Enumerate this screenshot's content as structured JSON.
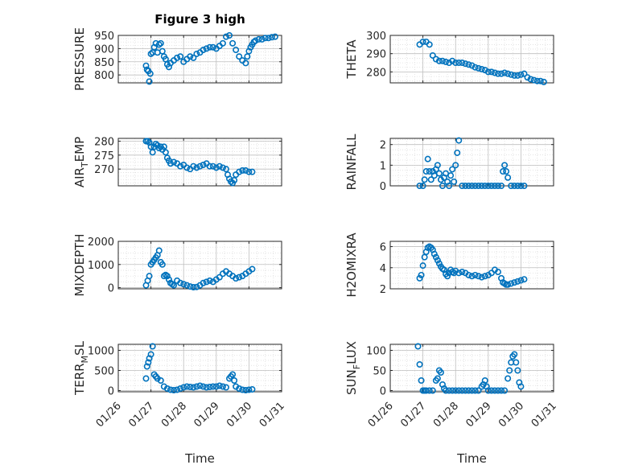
{
  "figure": {
    "title": "Figure 3 high"
  },
  "chart_data": [
    {
      "type": "scatter",
      "title": "Figure 3 high",
      "ylabel": "PRESSURE",
      "ylim": [
        770,
        950
      ],
      "yticks": [
        800,
        850,
        900,
        950
      ],
      "grid": true,
      "x_day": [
        0.85,
        0.88,
        0.92,
        0.95,
        0.98,
        1.0,
        1.05,
        1.1,
        1.15,
        1.2,
        1.25,
        1.3,
        1.35,
        1.4,
        1.45,
        1.5,
        1.55,
        1.6,
        1.7,
        1.8,
        1.9,
        2.0,
        2.1,
        2.2,
        2.3,
        2.4,
        2.5,
        2.6,
        2.7,
        2.8,
        2.9,
        3.0,
        3.1,
        3.2,
        3.3,
        3.4,
        3.5,
        3.6,
        3.7,
        3.8,
        3.9,
        3.95,
        4.0,
        4.05,
        4.1,
        4.15,
        4.2,
        4.3,
        4.4,
        4.5,
        4.6,
        4.7,
        4.8
      ],
      "values": [
        835,
        820,
        815,
        775,
        805,
        880,
        885,
        905,
        920,
        885,
        915,
        920,
        890,
        870,
        860,
        840,
        830,
        845,
        855,
        865,
        870,
        850,
        860,
        870,
        865,
        880,
        885,
        895,
        900,
        905,
        905,
        900,
        910,
        920,
        945,
        950,
        920,
        895,
        870,
        855,
        845,
        870,
        890,
        905,
        915,
        925,
        930,
        935,
        935,
        940,
        940,
        943,
        945
      ]
    },
    {
      "type": "scatter",
      "ylabel": "THETA",
      "ylim": [
        274,
        300
      ],
      "yticks": [
        280,
        290,
        300
      ],
      "grid": true,
      "x_day": [
        0.9,
        1.0,
        1.1,
        1.2,
        1.3,
        1.4,
        1.5,
        1.6,
        1.7,
        1.8,
        1.9,
        2.0,
        2.1,
        2.2,
        2.3,
        2.4,
        2.5,
        2.6,
        2.7,
        2.8,
        2.9,
        3.0,
        3.1,
        3.2,
        3.3,
        3.4,
        3.5,
        3.6,
        3.7,
        3.8,
        3.9,
        4.0,
        4.1,
        4.2,
        4.3,
        4.4,
        4.5,
        4.6,
        4.7
      ],
      "values": [
        295,
        296.5,
        296.5,
        295,
        289,
        287,
        286,
        286,
        285.5,
        285,
        286,
        285,
        285,
        285,
        284.5,
        284,
        283.5,
        282.5,
        282,
        281.5,
        281,
        280,
        280,
        279.5,
        279,
        279,
        279.5,
        279,
        278.5,
        278,
        278,
        278.5,
        279,
        277,
        276,
        275.5,
        275,
        275,
        274.5
      ]
    },
    {
      "type": "scatter",
      "ylabel": "AIR_TEMP",
      "ylim": [
        264,
        281
      ],
      "yticks": [
        270,
        275,
        280
      ],
      "grid": true,
      "x_day": [
        0.85,
        0.9,
        0.95,
        1.0,
        1.05,
        1.1,
        1.15,
        1.2,
        1.25,
        1.3,
        1.35,
        1.4,
        1.45,
        1.5,
        1.55,
        1.6,
        1.7,
        1.8,
        1.9,
        2.0,
        2.1,
        2.2,
        2.3,
        2.4,
        2.5,
        2.6,
        2.7,
        2.8,
        2.9,
        3.0,
        3.1,
        3.2,
        3.3,
        3.35,
        3.4,
        3.45,
        3.5,
        3.55,
        3.6,
        3.7,
        3.8,
        3.9,
        4.0,
        4.1
      ],
      "values": [
        280,
        280,
        279.5,
        278,
        276,
        278,
        279,
        278.5,
        277.5,
        278,
        277,
        278,
        276,
        274,
        273,
        272,
        272.5,
        272,
        271,
        271.5,
        270.5,
        270,
        271,
        270.5,
        271,
        271.5,
        272,
        271,
        271,
        270.5,
        271,
        270.5,
        270,
        268,
        266.5,
        265.5,
        265,
        266,
        268,
        269,
        269.5,
        269.5,
        269,
        269
      ]
    },
    {
      "type": "scatter",
      "ylabel": "RAINFALL",
      "ylim": [
        0,
        2.3
      ],
      "yticks": [
        0,
        1,
        2
      ],
      "grid": true,
      "x_day": [
        0.9,
        1.0,
        1.05,
        1.1,
        1.15,
        1.2,
        1.25,
        1.3,
        1.35,
        1.4,
        1.45,
        1.5,
        1.55,
        1.6,
        1.65,
        1.7,
        1.75,
        1.8,
        1.85,
        1.9,
        1.95,
        2.0,
        2.05,
        2.1,
        2.2,
        2.3,
        2.4,
        2.5,
        2.6,
        2.7,
        2.8,
        2.9,
        3.0,
        3.1,
        3.2,
        3.3,
        3.4,
        3.45,
        3.5,
        3.55,
        3.6,
        3.7,
        3.8,
        3.9,
        4.0,
        4.1
      ],
      "values": [
        0,
        0,
        0.3,
        0.7,
        1.3,
        0.7,
        0.3,
        0.7,
        0.5,
        0.8,
        1.0,
        0.6,
        0.3,
        0,
        0.4,
        0.6,
        0.2,
        0,
        0.5,
        0.8,
        0.2,
        1.0,
        1.6,
        2.2,
        0,
        0,
        0,
        0,
        0,
        0,
        0,
        0,
        0,
        0,
        0,
        0,
        0,
        0.7,
        1.0,
        0.7,
        0.4,
        0,
        0,
        0,
        0,
        0
      ]
    },
    {
      "type": "scatter",
      "ylabel": "MIXDEPTH",
      "ylim": [
        -50,
        2000
      ],
      "yticks": [
        0,
        1000,
        2000
      ],
      "grid": true,
      "x_day": [
        0.85,
        0.9,
        0.95,
        1.0,
        1.05,
        1.1,
        1.15,
        1.2,
        1.25,
        1.3,
        1.35,
        1.4,
        1.45,
        1.5,
        1.55,
        1.6,
        1.65,
        1.7,
        1.8,
        1.9,
        2.0,
        2.1,
        2.2,
        2.3,
        2.4,
        2.5,
        2.6,
        2.7,
        2.8,
        2.9,
        3.0,
        3.1,
        3.2,
        3.3,
        3.4,
        3.5,
        3.6,
        3.7,
        3.8,
        3.9,
        4.0,
        4.1
      ],
      "values": [
        100,
        300,
        500,
        1000,
        1100,
        1200,
        1300,
        1400,
        1600,
        1100,
        1000,
        500,
        550,
        500,
        350,
        200,
        150,
        100,
        300,
        200,
        150,
        100,
        50,
        20,
        30,
        100,
        200,
        250,
        300,
        250,
        350,
        450,
        600,
        700,
        600,
        500,
        400,
        450,
        500,
        600,
        700,
        800
      ]
    },
    {
      "type": "scatter",
      "ylabel": "H2OMIXRA",
      "ylim": [
        2,
        6.5
      ],
      "yticks": [
        2,
        4,
        6
      ],
      "grid": true,
      "x_day": [
        0.9,
        0.95,
        1.0,
        1.05,
        1.1,
        1.15,
        1.2,
        1.25,
        1.3,
        1.35,
        1.4,
        1.45,
        1.5,
        1.55,
        1.6,
        1.65,
        1.7,
        1.75,
        1.8,
        1.85,
        1.9,
        1.95,
        2.0,
        2.1,
        2.2,
        2.3,
        2.4,
        2.5,
        2.6,
        2.7,
        2.8,
        2.9,
        3.0,
        3.1,
        3.2,
        3.3,
        3.4,
        3.45,
        3.5,
        3.55,
        3.6,
        3.7,
        3.8,
        3.9,
        4.0,
        4.1
      ],
      "values": [
        3.0,
        3.3,
        4.2,
        5.0,
        5.5,
        5.9,
        6.0,
        5.9,
        5.7,
        5.3,
        5.0,
        4.7,
        4.4,
        4.1,
        3.9,
        3.8,
        3.4,
        3.2,
        3.5,
        3.8,
        3.6,
        3.5,
        3.7,
        3.5,
        3.6,
        3.5,
        3.3,
        3.2,
        3.3,
        3.2,
        3.1,
        3.2,
        3.3,
        3.5,
        3.8,
        3.6,
        3.0,
        2.6,
        2.5,
        2.4,
        2.4,
        2.5,
        2.6,
        2.7,
        2.8,
        2.9
      ]
    },
    {
      "type": "scatter",
      "ylabel": "TERR_MSL",
      "ylim": [
        -30,
        1150
      ],
      "yticks": [
        0,
        500,
        1000
      ],
      "grid": true,
      "x_day": [
        0.85,
        0.88,
        0.92,
        0.95,
        1.0,
        1.05,
        1.1,
        1.15,
        1.2,
        1.3,
        1.4,
        1.5,
        1.6,
        1.7,
        1.8,
        1.9,
        2.0,
        2.1,
        2.2,
        2.3,
        2.4,
        2.5,
        2.6,
        2.7,
        2.8,
        2.9,
        3.0,
        3.1,
        3.2,
        3.3,
        3.4,
        3.45,
        3.5,
        3.55,
        3.6,
        3.7,
        3.8,
        3.9,
        4.0,
        4.1
      ],
      "values": [
        300,
        600,
        700,
        800,
        900,
        1100,
        400,
        350,
        300,
        250,
        100,
        50,
        20,
        10,
        20,
        50,
        80,
        100,
        90,
        80,
        100,
        120,
        100,
        80,
        90,
        100,
        100,
        120,
        100,
        80,
        300,
        350,
        400,
        250,
        100,
        50,
        20,
        10,
        20,
        30
      ]
    },
    {
      "type": "scatter",
      "ylabel": "SUN_FLUX",
      "ylim": [
        -3,
        115
      ],
      "yticks": [
        0,
        50,
        100
      ],
      "grid": true,
      "x_day": [
        0.85,
        0.9,
        0.95,
        1.0,
        1.05,
        1.1,
        1.2,
        1.3,
        1.4,
        1.45,
        1.5,
        1.55,
        1.6,
        1.65,
        1.7,
        1.8,
        1.9,
        2.0,
        2.1,
        2.2,
        2.3,
        2.4,
        2.5,
        2.6,
        2.7,
        2.8,
        2.85,
        2.9,
        2.95,
        3.0,
        3.1,
        3.2,
        3.3,
        3.4,
        3.5,
        3.6,
        3.65,
        3.7,
        3.75,
        3.8,
        3.85,
        3.9,
        3.95,
        4.0
      ],
      "values": [
        110,
        65,
        25,
        0,
        0,
        0,
        0,
        0,
        25,
        30,
        50,
        45,
        15,
        5,
        0,
        0,
        0,
        0,
        0,
        0,
        0,
        0,
        0,
        0,
        0,
        10,
        15,
        25,
        10,
        0,
        0,
        0,
        0,
        0,
        0,
        30,
        50,
        70,
        85,
        90,
        70,
        50,
        20,
        10
      ]
    }
  ],
  "x_axis": {
    "ticks": [
      0,
      1,
      2,
      3,
      4,
      5
    ],
    "tick_labels": [
      "01/26",
      "01/27",
      "01/28",
      "01/29",
      "01/30",
      "01/31"
    ],
    "xlabel": "Time"
  },
  "colors": {
    "marker": "#0072BD",
    "axis": "#262626",
    "grid": "#bfbfbf",
    "grid_minor": "#dadada"
  }
}
